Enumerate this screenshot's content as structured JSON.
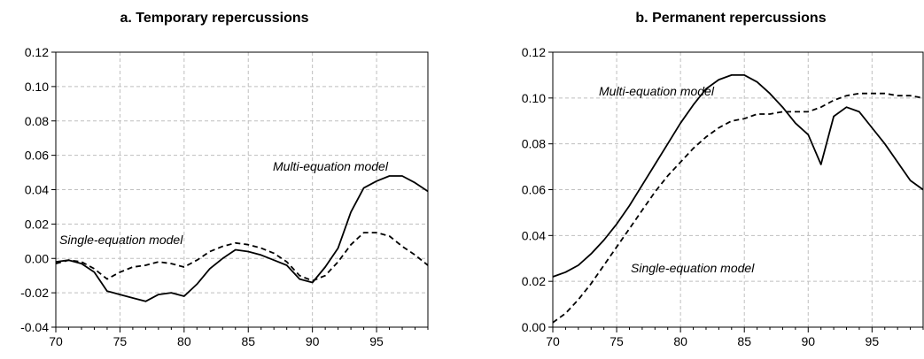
{
  "chart_data": [
    {
      "type": "line",
      "title": "a. Temporary repercussions",
      "xlabel": "",
      "ylabel": "",
      "xlim": [
        70,
        99
      ],
      "ylim": [
        -0.04,
        0.12
      ],
      "xticks": [
        70,
        75,
        80,
        85,
        90,
        95
      ],
      "xtick_labels": [
        "70",
        "75",
        "80",
        "85",
        "90",
        "95"
      ],
      "yticks": [
        -0.04,
        -0.02,
        0.0,
        0.02,
        0.04,
        0.06,
        0.08,
        0.1,
        0.12
      ],
      "ytick_labels": [
        "-0.04",
        "-0.02",
        "0.00",
        "0.02",
        "0.04",
        "0.06",
        "0.08",
        "0.10",
        "0.12"
      ],
      "grid": true,
      "series": [
        {
          "name": "Multi-equation model",
          "style": "solid",
          "x": [
            70,
            71,
            72,
            73,
            74,
            75,
            76,
            77,
            78,
            79,
            80,
            81,
            82,
            83,
            84,
            85,
            86,
            87,
            88,
            89,
            90,
            91,
            92,
            93,
            94,
            95,
            96,
            97,
            98,
            99
          ],
          "y": [
            -0.002,
            -0.001,
            -0.003,
            -0.008,
            -0.019,
            -0.021,
            -0.023,
            -0.025,
            -0.021,
            -0.02,
            -0.022,
            -0.015,
            -0.006,
            0.0,
            0.005,
            0.004,
            0.002,
            -0.001,
            -0.004,
            -0.012,
            -0.014,
            -0.005,
            0.006,
            0.027,
            0.041,
            0.045,
            0.048,
            0.048,
            0.044,
            0.039
          ]
        },
        {
          "name": "Single-equation model",
          "style": "dashed",
          "x": [
            70,
            71,
            72,
            73,
            74,
            75,
            76,
            77,
            78,
            79,
            80,
            81,
            82,
            83,
            84,
            85,
            86,
            87,
            88,
            89,
            90,
            91,
            92,
            93,
            94,
            95,
            96,
            97,
            98,
            99
          ],
          "y": [
            -0.003,
            -0.001,
            -0.002,
            -0.006,
            -0.012,
            -0.008,
            -0.005,
            -0.004,
            -0.002,
            -0.003,
            -0.005,
            -0.001,
            0.004,
            0.007,
            0.009,
            0.008,
            0.006,
            0.003,
            -0.002,
            -0.01,
            -0.013,
            -0.01,
            -0.002,
            0.008,
            0.015,
            0.015,
            0.013,
            0.007,
            0.002,
            -0.004
          ]
        }
      ],
      "annotations": [
        "Multi-equation model",
        "Single-equation model"
      ]
    },
    {
      "type": "line",
      "title": "b. Permanent repercussions",
      "xlabel": "",
      "ylabel": "",
      "xlim": [
        70,
        99
      ],
      "ylim": [
        0.0,
        0.12
      ],
      "xticks": [
        70,
        75,
        80,
        85,
        90,
        95
      ],
      "xtick_labels": [
        "70",
        "75",
        "80",
        "85",
        "90",
        "95"
      ],
      "yticks": [
        0.0,
        0.02,
        0.04,
        0.06,
        0.08,
        0.1,
        0.12
      ],
      "ytick_labels": [
        "0.00",
        "0.02",
        "0.04",
        "0.06",
        "0.08",
        "0.10",
        "0.12"
      ],
      "grid": true,
      "series": [
        {
          "name": "Multi-equation model",
          "style": "solid",
          "x": [
            70,
            71,
            72,
            73,
            74,
            75,
            76,
            77,
            78,
            79,
            80,
            81,
            82,
            83,
            84,
            85,
            86,
            87,
            88,
            89,
            90,
            91,
            92,
            93,
            94,
            95,
            96,
            97,
            98,
            99
          ],
          "y": [
            0.022,
            0.024,
            0.027,
            0.032,
            0.038,
            0.045,
            0.053,
            0.062,
            0.071,
            0.08,
            0.089,
            0.097,
            0.104,
            0.108,
            0.11,
            0.11,
            0.107,
            0.102,
            0.096,
            0.089,
            0.084,
            0.071,
            0.092,
            0.096,
            0.094,
            0.087,
            0.08,
            0.072,
            0.064,
            0.06
          ]
        },
        {
          "name": "Single-equation model",
          "style": "dashed",
          "x": [
            70,
            71,
            72,
            73,
            74,
            75,
            76,
            77,
            78,
            79,
            80,
            81,
            82,
            83,
            84,
            85,
            86,
            87,
            88,
            89,
            90,
            91,
            92,
            93,
            94,
            95,
            96,
            97,
            98,
            99
          ],
          "y": [
            0.002,
            0.006,
            0.012,
            0.019,
            0.027,
            0.035,
            0.043,
            0.051,
            0.059,
            0.066,
            0.072,
            0.078,
            0.083,
            0.087,
            0.09,
            0.091,
            0.093,
            0.093,
            0.094,
            0.094,
            0.094,
            0.096,
            0.099,
            0.101,
            0.102,
            0.102,
            0.102,
            0.101,
            0.101,
            0.1
          ]
        }
      ],
      "annotations": [
        "Multi-equation model",
        "Single-equation model"
      ]
    }
  ]
}
